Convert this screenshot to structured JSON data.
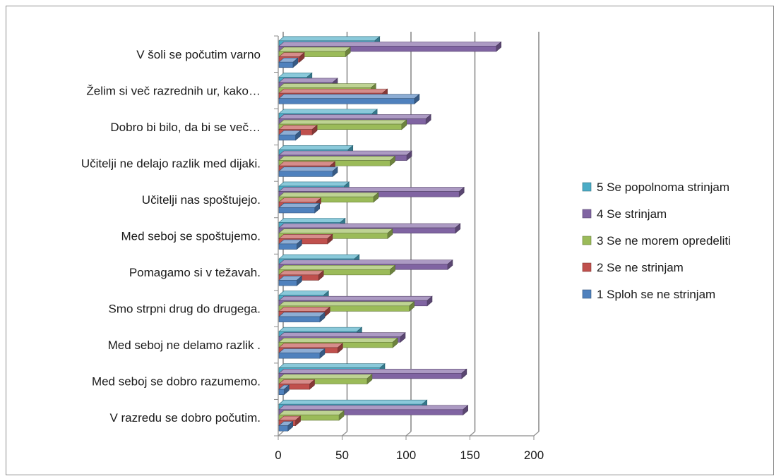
{
  "chart_data": {
    "type": "bar",
    "orientation": "horizontal",
    "style": "3d-clustered",
    "categories": [
      "V šoli se počutim varno",
      "Želim si več razrednih ur, kako…",
      "Dobro bi bilo, da bi se več…",
      "Učitelji ne delajo razlik med dijaki.",
      "Učitelji nas spoštujejo.",
      "Med seboj se spoštujemo.",
      "Pomagamo si v težavah.",
      "Smo strpni drug do drugega.",
      "Med seboj ne delamo razlik .",
      "Med seboj se  dobro razumemo.",
      "V razredu se dobro počutim."
    ],
    "series": [
      {
        "name": "1 Sploh se ne strinjam",
        "color": "#4f81bd",
        "values": [
          11,
          106,
          13,
          42,
          28,
          14,
          14,
          32,
          32,
          4,
          7
        ]
      },
      {
        "name": "2 Se ne strinjam",
        "color": "#c0504d",
        "values": [
          16,
          81,
          26,
          40,
          29,
          38,
          31,
          36,
          46,
          24,
          13
        ]
      },
      {
        "name": "3 Se ne morem opredeliti",
        "color": "#9bbb59",
        "values": [
          52,
          72,
          96,
          87,
          74,
          85,
          87,
          102,
          89,
          69,
          47
        ]
      },
      {
        "name": "4 Se strinjam",
        "color": "#8064a2",
        "values": [
          170,
          42,
          115,
          100,
          141,
          138,
          132,
          116,
          95,
          143,
          144
        ]
      },
      {
        "name": "5 Se popolnoma strinjam",
        "color": "#4bacc6",
        "values": [
          75,
          22,
          73,
          54,
          51,
          48,
          59,
          35,
          61,
          79,
          112
        ]
      }
    ],
    "xlim": [
      0,
      200
    ],
    "xticks": [
      0,
      50,
      100,
      150,
      200
    ],
    "grid": true,
    "legend_placement": "right"
  }
}
